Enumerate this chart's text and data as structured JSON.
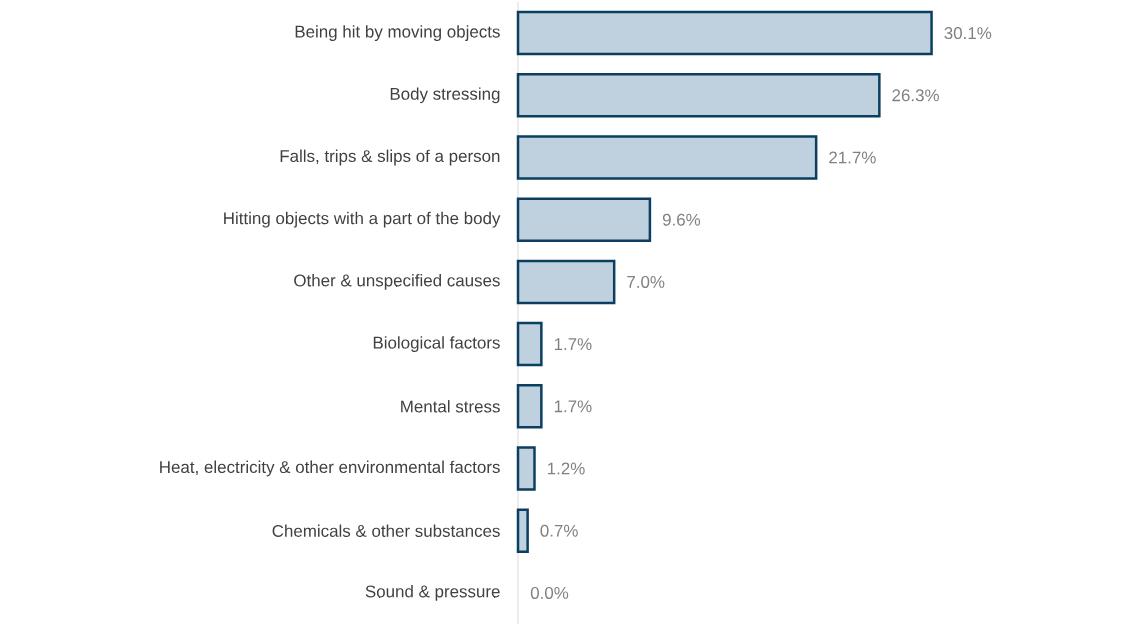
{
  "chart_data": {
    "type": "bar",
    "orientation": "horizontal",
    "categories": [
      "Being hit by moving objects",
      "Body stressing",
      "Falls, trips & slips of a person",
      "Hitting objects with a part of the body",
      "Other & unspecified causes",
      "Biological factors",
      "Mental stress",
      "Heat, electricity & other environmental factors",
      "Chemicals & other substances",
      "Sound & pressure"
    ],
    "values": [
      30.1,
      26.3,
      21.7,
      9.6,
      7.0,
      1.7,
      1.7,
      1.2,
      0.7,
      0.0
    ],
    "value_labels": [
      "30.1%",
      "26.3%",
      "21.7%",
      "9.6%",
      "7.0%",
      "1.7%",
      "1.7%",
      "1.2%",
      "0.7%",
      "0.0%"
    ],
    "color": "#bfd1df"
  }
}
